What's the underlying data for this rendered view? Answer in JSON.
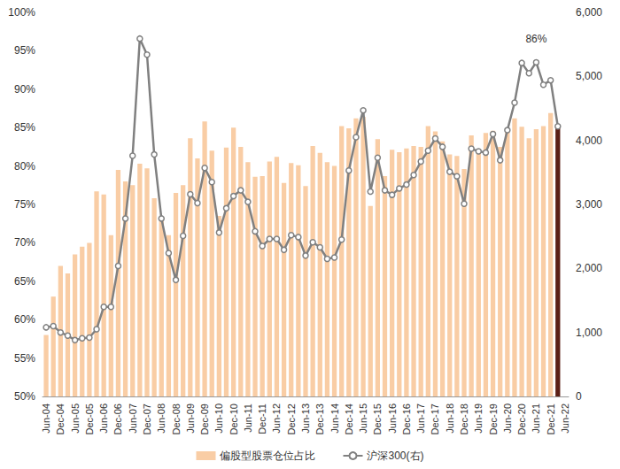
{
  "chart_data": {
    "type": "bar",
    "categories": [
      "Jun-04",
      null,
      "Dec-04",
      null,
      "Jun-05",
      null,
      "Dec-05",
      null,
      "Jun-06",
      null,
      "Dec-06",
      null,
      "Jun-07",
      null,
      "Dec-07",
      null,
      "Jun-08",
      null,
      "Dec-08",
      null,
      "Jun-09",
      null,
      "Dec-09",
      null,
      "Jun-10",
      null,
      "Dec-10",
      null,
      "Jun-11",
      null,
      "Dec-11",
      null,
      "Jun-12",
      null,
      "Dec-12",
      null,
      "Jun-13",
      null,
      "Dec-13",
      null,
      "Jun-14",
      null,
      "Dec-14",
      null,
      "Jun-15",
      null,
      "Dec-15",
      null,
      "Jun-16",
      null,
      "Dec-16",
      null,
      "Jun-17",
      null,
      "Dec-17",
      null,
      "Jun-18",
      null,
      "Dec-18",
      null,
      "Jun-19",
      null,
      "Dec-19",
      null,
      "Jun-20",
      null,
      "Dec-20",
      null,
      "Jun-21",
      null,
      "Dec-21",
      null,
      "Jun-22"
    ],
    "series": [
      {
        "name": "偏股型股票仓位占比",
        "type": "bar",
        "color": "#f9cda5",
        "colors": [
          "#f9cda5",
          "#f9cda5",
          "#f9cda5",
          "#f9cda5",
          "#f9cda5",
          "#f9cda5",
          "#f9cda5",
          "#f9cda5",
          "#f9cda5",
          "#f9cda5",
          "#f9cda5",
          "#f9cda5",
          "#f9cda5",
          "#f9cda5",
          "#f9cda5",
          "#f9cda5",
          "#f9cda5",
          "#f9cda5",
          "#f9cda5",
          "#f9cda5",
          "#f9cda5",
          "#f9cda5",
          "#f9cda5",
          "#f9cda5",
          "#f9cda5",
          "#f9cda5",
          "#f9cda5",
          "#f9cda5",
          "#f9cda5",
          "#f9cda5",
          "#f9cda5",
          "#f9cda5",
          "#f9cda5",
          "#f9cda5",
          "#f9cda5",
          "#f9cda5",
          "#f9cda5",
          "#f9cda5",
          "#f9cda5",
          "#f9cda5",
          "#f9cda5",
          "#f9cda5",
          "#f9cda5",
          "#f9cda5",
          "#f9cda5",
          "#f9cda5",
          "#f9cda5",
          "#f9cda5",
          "#f9cda5",
          "#f9cda5",
          "#f9cda5",
          "#f9cda5",
          "#f9cda5",
          "#f9cda5",
          "#f9cda5",
          "#f9cda5",
          "#f9cda5",
          "#f9cda5",
          "#f9cda5",
          "#f9cda5",
          "#f9cda5",
          "#f9cda5",
          "#f9cda5",
          "#f9cda5",
          "#f9cda5",
          "#f9cda5",
          "#f9cda5",
          "#f9cda5",
          "#f9cda5",
          "#f9cda5",
          "#f9cda5",
          "#5b1f16",
          "#f9cda5"
        ],
        "values": [
          58,
          63,
          67,
          66,
          68.5,
          69.5,
          70,
          76.7,
          76.3,
          71,
          79.5,
          78,
          77.5,
          80.3,
          79.7,
          75.8,
          73,
          71,
          76.5,
          77.5,
          83.6,
          81,
          85.8,
          82,
          73.5,
          82.4,
          85,
          82.5,
          80.5,
          78.6,
          78.7,
          80.6,
          81.2,
          77.8,
          80.4,
          80.1,
          77.4,
          82.6,
          81.7,
          80.5,
          80,
          85.2,
          84.9,
          86.2,
          86.4,
          74.8,
          83.5,
          78.7,
          82.1,
          81.8,
          82.3,
          82.6,
          82.5,
          85.2,
          84.5,
          83.2,
          81.5,
          81.3,
          79.6,
          84,
          82,
          84.3,
          84.6,
          82.5,
          84.7,
          86.2,
          85.1,
          83.6,
          84.8,
          85.2,
          86.9,
          85.2,
          null
        ]
      },
      {
        "name": "沪深300(右)",
        "type": "line",
        "axis": "y2",
        "color": "#808080",
        "marker": "circle",
        "values": [
          1080,
          1100,
          1000,
          950,
          880,
          910,
          920,
          1050,
          1400,
          1400,
          2040,
          2780,
          3760,
          5590,
          5340,
          3780,
          2780,
          2240,
          1820,
          2510,
          3160,
          3020,
          3570,
          3350,
          2560,
          2940,
          3130,
          3220,
          3040,
          2580,
          2350,
          2460,
          2460,
          2290,
          2520,
          2490,
          2200,
          2410,
          2330,
          2150,
          2170,
          2450,
          3530,
          4050,
          4470,
          3200,
          3730,
          3220,
          3150,
          3250,
          3310,
          3460,
          3670,
          3840,
          4030,
          3900,
          3510,
          3440,
          3010,
          3870,
          3830,
          3810,
          4100,
          3690,
          4160,
          4590,
          5210,
          5050,
          5220,
          4870,
          4940,
          4220,
          null
        ]
      }
    ],
    "ylim": [
      50,
      100
    ],
    "yticks": [
      {
        "value": 50,
        "label": "50%"
      },
      {
        "value": 55,
        "label": "55%"
      },
      {
        "value": 60,
        "label": "60%"
      },
      {
        "value": 65,
        "label": "65%"
      },
      {
        "value": 70,
        "label": "70%"
      },
      {
        "value": 75,
        "label": "75%"
      },
      {
        "value": 80,
        "label": "80%"
      },
      {
        "value": 85,
        "label": "85%"
      },
      {
        "value": 90,
        "label": "90%"
      },
      {
        "value": 95,
        "label": "95%"
      },
      {
        "value": 100,
        "label": "100%"
      }
    ],
    "y2lim": [
      0,
      6000
    ],
    "y2ticks": [
      0,
      {
        "value": 1000,
        "label": "1,000"
      },
      {
        "value": 2000,
        "label": "2,000"
      },
      {
        "value": 3000,
        "label": "3,000"
      },
      {
        "value": 4000,
        "label": "4,000"
      },
      {
        "value": 5000,
        "label": "5,000"
      },
      {
        "value": 6000,
        "label": "6,000"
      }
    ],
    "annotations": [
      {
        "text": "86%",
        "x": "Jun-21"
      }
    ],
    "grid": false,
    "legend": "bottom"
  }
}
